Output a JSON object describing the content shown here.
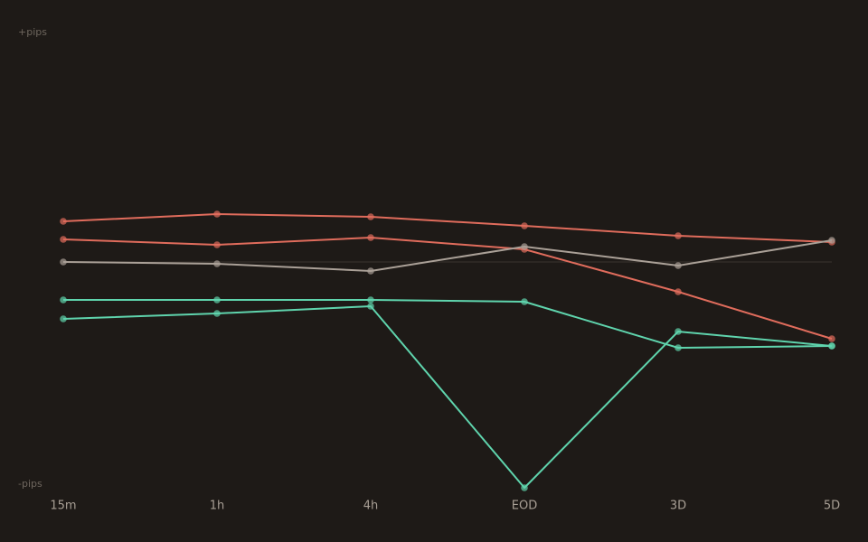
{
  "chart_data": {
    "type": "line",
    "categories": [
      "15m",
      "1h",
      "4h",
      "EOD",
      "3D",
      "5D"
    ],
    "series": [
      {
        "color": "#e06c5c",
        "values": [
          45,
          53,
          50,
          40,
          29,
          22
        ]
      },
      {
        "color": "#e06c5c",
        "values": [
          25,
          19,
          27,
          14,
          -33,
          -85
        ]
      },
      {
        "color": "#aaa097",
        "values": [
          0,
          -2,
          -10,
          17,
          -4,
          24
        ]
      },
      {
        "color": "#5fd4ad",
        "values": [
          -42,
          -42,
          -42,
          -44,
          -95,
          -93
        ]
      },
      {
        "color": "#5fd4ad",
        "values": [
          -63,
          -57,
          -49,
          -250,
          -77,
          -93
        ]
      }
    ],
    "ylim": [
      -250,
      250
    ],
    "yticks": [
      {
        "value": 250,
        "label": "+pips"
      },
      {
        "value": -250,
        "label": "-pips"
      }
    ]
  }
}
